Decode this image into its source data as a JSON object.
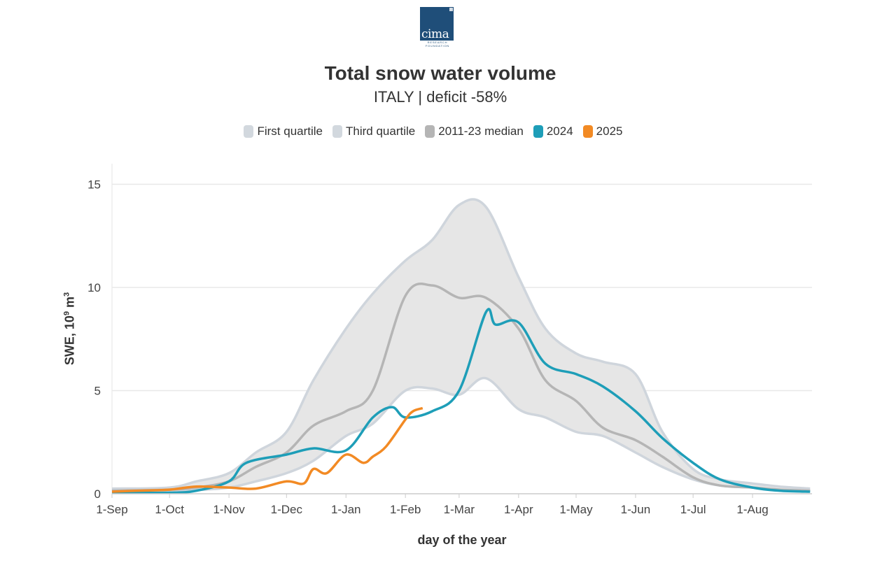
{
  "logo": {
    "word": "cima",
    "line1": "RESEARCH",
    "line2": "FOUNDATION"
  },
  "colors": {
    "band_fill": "#e6e6e6",
    "quartile_line": "#cfd5dc",
    "median": "#b5b5b5",
    "s2024": "#1e9eb8",
    "s2025": "#f28a24",
    "grid": "#e8e8e8"
  },
  "chart_data": {
    "type": "area",
    "title": "Total snow water volume",
    "subtitle": "ITALY | deficit -58%",
    "xlabel": "day of the year",
    "ylabel": {
      "text": "SWE, 10",
      "sup1": "9",
      "mid": " m",
      "sup2": "3"
    },
    "ylim": [
      0,
      16
    ],
    "yticks": [
      0,
      5,
      10,
      15
    ],
    "xlim": [
      "1-Sep",
      "31-Aug"
    ],
    "xticks": [
      "1-Sep",
      "1-Oct",
      "1-Nov",
      "1-Dec",
      "1-Jan",
      "1-Feb",
      "1-Mar",
      "1-Apr",
      "1-May",
      "1-Jun",
      "1-Jul",
      "1-Aug"
    ],
    "grid": true,
    "legend_position": "top-center",
    "legend": [
      {
        "label": "First quartile",
        "color": "#d2d8de"
      },
      {
        "label": "Third quartile",
        "color": "#d2d8de"
      },
      {
        "label": "2011-23 median",
        "color": "#b5b5b5"
      },
      {
        "label": "2024",
        "color": "#1e9eb8"
      },
      {
        "label": "2025",
        "color": "#f28a24"
      }
    ],
    "series": [
      {
        "name": "First quartile",
        "x": [
          "1-Sep",
          "1-Oct",
          "15-Oct",
          "1-Nov",
          "15-Nov",
          "1-Dec",
          "15-Dec",
          "1-Jan",
          "15-Jan",
          "1-Feb",
          "15-Feb",
          "1-Mar",
          "15-Mar",
          "1-Apr",
          "15-Apr",
          "1-May",
          "15-May",
          "1-Jun",
          "15-Jun",
          "1-Jul",
          "15-Jul",
          "1-Aug",
          "15-Aug",
          "31-Aug"
        ],
        "y": [
          0.1,
          0.12,
          0.18,
          0.3,
          0.6,
          1.0,
          1.6,
          2.8,
          3.4,
          5.0,
          5.1,
          4.8,
          5.6,
          4.1,
          3.7,
          3.0,
          2.8,
          2.0,
          1.3,
          0.7,
          0.4,
          0.3,
          0.2,
          0.15
        ]
      },
      {
        "name": "Third quartile",
        "x": [
          "1-Sep",
          "1-Oct",
          "15-Oct",
          "1-Nov",
          "15-Nov",
          "1-Dec",
          "15-Dec",
          "1-Jan",
          "15-Jan",
          "1-Feb",
          "15-Feb",
          "1-Mar",
          "15-Mar",
          "1-Apr",
          "15-Apr",
          "1-May",
          "15-May",
          "1-Jun",
          "15-Jun",
          "1-Jul",
          "15-Jul",
          "1-Aug",
          "15-Aug",
          "31-Aug"
        ],
        "y": [
          0.25,
          0.3,
          0.6,
          1.0,
          2.0,
          3.0,
          5.5,
          8.0,
          9.7,
          11.3,
          12.3,
          14.0,
          13.9,
          10.5,
          8.0,
          6.8,
          6.4,
          5.8,
          3.0,
          1.2,
          0.7,
          0.5,
          0.35,
          0.25
        ]
      },
      {
        "name": "2011-23 median",
        "x": [
          "1-Sep",
          "1-Oct",
          "15-Oct",
          "1-Nov",
          "15-Nov",
          "1-Dec",
          "15-Dec",
          "1-Jan",
          "15-Jan",
          "1-Feb",
          "15-Feb",
          "1-Mar",
          "15-Mar",
          "1-Apr",
          "15-Apr",
          "1-May",
          "15-May",
          "1-Jun",
          "15-Jun",
          "1-Jul",
          "15-Jul",
          "1-Aug",
          "15-Aug",
          "31-Aug"
        ],
        "y": [
          0.15,
          0.2,
          0.3,
          0.6,
          1.3,
          2.0,
          3.3,
          4.0,
          5.0,
          9.6,
          10.1,
          9.5,
          9.5,
          8.0,
          5.5,
          4.5,
          3.2,
          2.6,
          1.8,
          0.8,
          0.4,
          0.3,
          0.2,
          0.15
        ]
      },
      {
        "name": "2024",
        "x": [
          "1-Sep",
          "1-Oct",
          "15-Oct",
          "1-Nov",
          "10-Nov",
          "1-Dec",
          "15-Dec",
          "1-Jan",
          "15-Jan",
          "25-Jan",
          "1-Feb",
          "15-Feb",
          "1-Mar",
          "15-Mar",
          "20-Mar",
          "1-Apr",
          "15-Apr",
          "1-May",
          "15-May",
          "1-Jun",
          "15-Jun",
          "1-Jul",
          "15-Jul",
          "1-Aug",
          "15-Aug",
          "31-Aug"
        ],
        "y": [
          0.05,
          0.05,
          0.15,
          0.6,
          1.5,
          1.9,
          2.2,
          2.1,
          3.7,
          4.2,
          3.7,
          4.0,
          5.0,
          8.8,
          8.2,
          8.3,
          6.3,
          5.8,
          5.2,
          4.0,
          2.7,
          1.5,
          0.7,
          0.3,
          0.15,
          0.1
        ]
      },
      {
        "name": "2025",
        "x": [
          "1-Sep",
          "15-Sep",
          "1-Oct",
          "15-Oct",
          "1-Nov",
          "15-Nov",
          "1-Dec",
          "10-Dec",
          "15-Dec",
          "22-Dec",
          "1-Jan",
          "10-Jan",
          "15-Jan",
          "22-Jan",
          "1-Feb",
          "5-Feb",
          "10-Feb"
        ],
        "y": [
          0.1,
          0.15,
          0.2,
          0.35,
          0.3,
          0.25,
          0.6,
          0.5,
          1.2,
          1.0,
          1.9,
          1.5,
          1.8,
          2.3,
          3.6,
          4.0,
          4.15
        ]
      }
    ]
  }
}
